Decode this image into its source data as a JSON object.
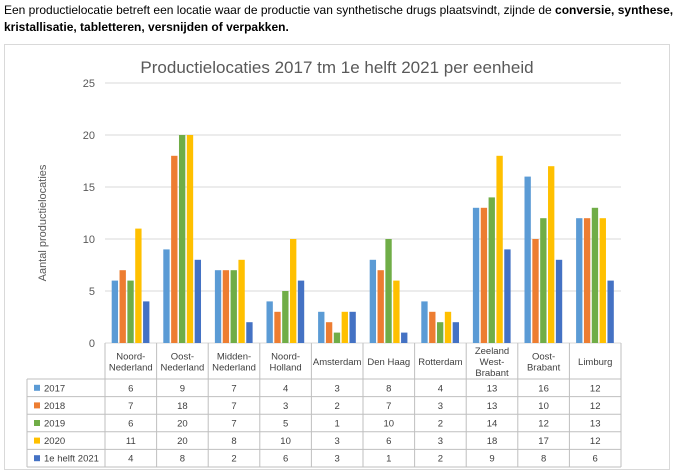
{
  "intro": {
    "text_plain": "Een productielocatie betreft een locatie waar de productie van synthetische drugs plaatsvindt, zijnde de ",
    "text_bold": "conversie, synthese, kristallisatie, tabletteren, versnijden of verpakken."
  },
  "chart_data": {
    "type": "bar",
    "title": "Productielocaties 2017 tm 1e helft 2021 per eenheid",
    "ylabel": "Aantal productielocaties",
    "xlabel": "",
    "ylim": [
      0,
      25
    ],
    "yticks": [
      0,
      5,
      10,
      15,
      20,
      25
    ],
    "grid": true,
    "legend": "data-table",
    "categories": [
      "Noord-\nNederland",
      "Oost-\nNederland",
      "Midden-\nNederland",
      "Noord-\nHolland",
      "Amsterdam",
      "Den Haag",
      "Rotterdam",
      "Zeeland\nWest-\nBrabant",
      "Oost-\nBrabant",
      "Limburg"
    ],
    "series": [
      {
        "name": "2017",
        "color": "#5b9bd5",
        "values": [
          6,
          9,
          7,
          4,
          3,
          8,
          4,
          13,
          16,
          12
        ]
      },
      {
        "name": "2018",
        "color": "#ed7d31",
        "values": [
          7,
          18,
          7,
          3,
          2,
          7,
          3,
          13,
          10,
          12
        ]
      },
      {
        "name": "2019",
        "color": "#70ad47",
        "values": [
          6,
          20,
          7,
          5,
          1,
          10,
          2,
          14,
          12,
          13
        ]
      },
      {
        "name": "2020",
        "color": "#ffc000",
        "values": [
          11,
          20,
          8,
          10,
          3,
          6,
          3,
          18,
          17,
          12
        ]
      },
      {
        "name": "1e helft 2021",
        "color": "#4472c4",
        "values": [
          4,
          8,
          2,
          6,
          3,
          1,
          2,
          9,
          8,
          6
        ]
      }
    ]
  }
}
